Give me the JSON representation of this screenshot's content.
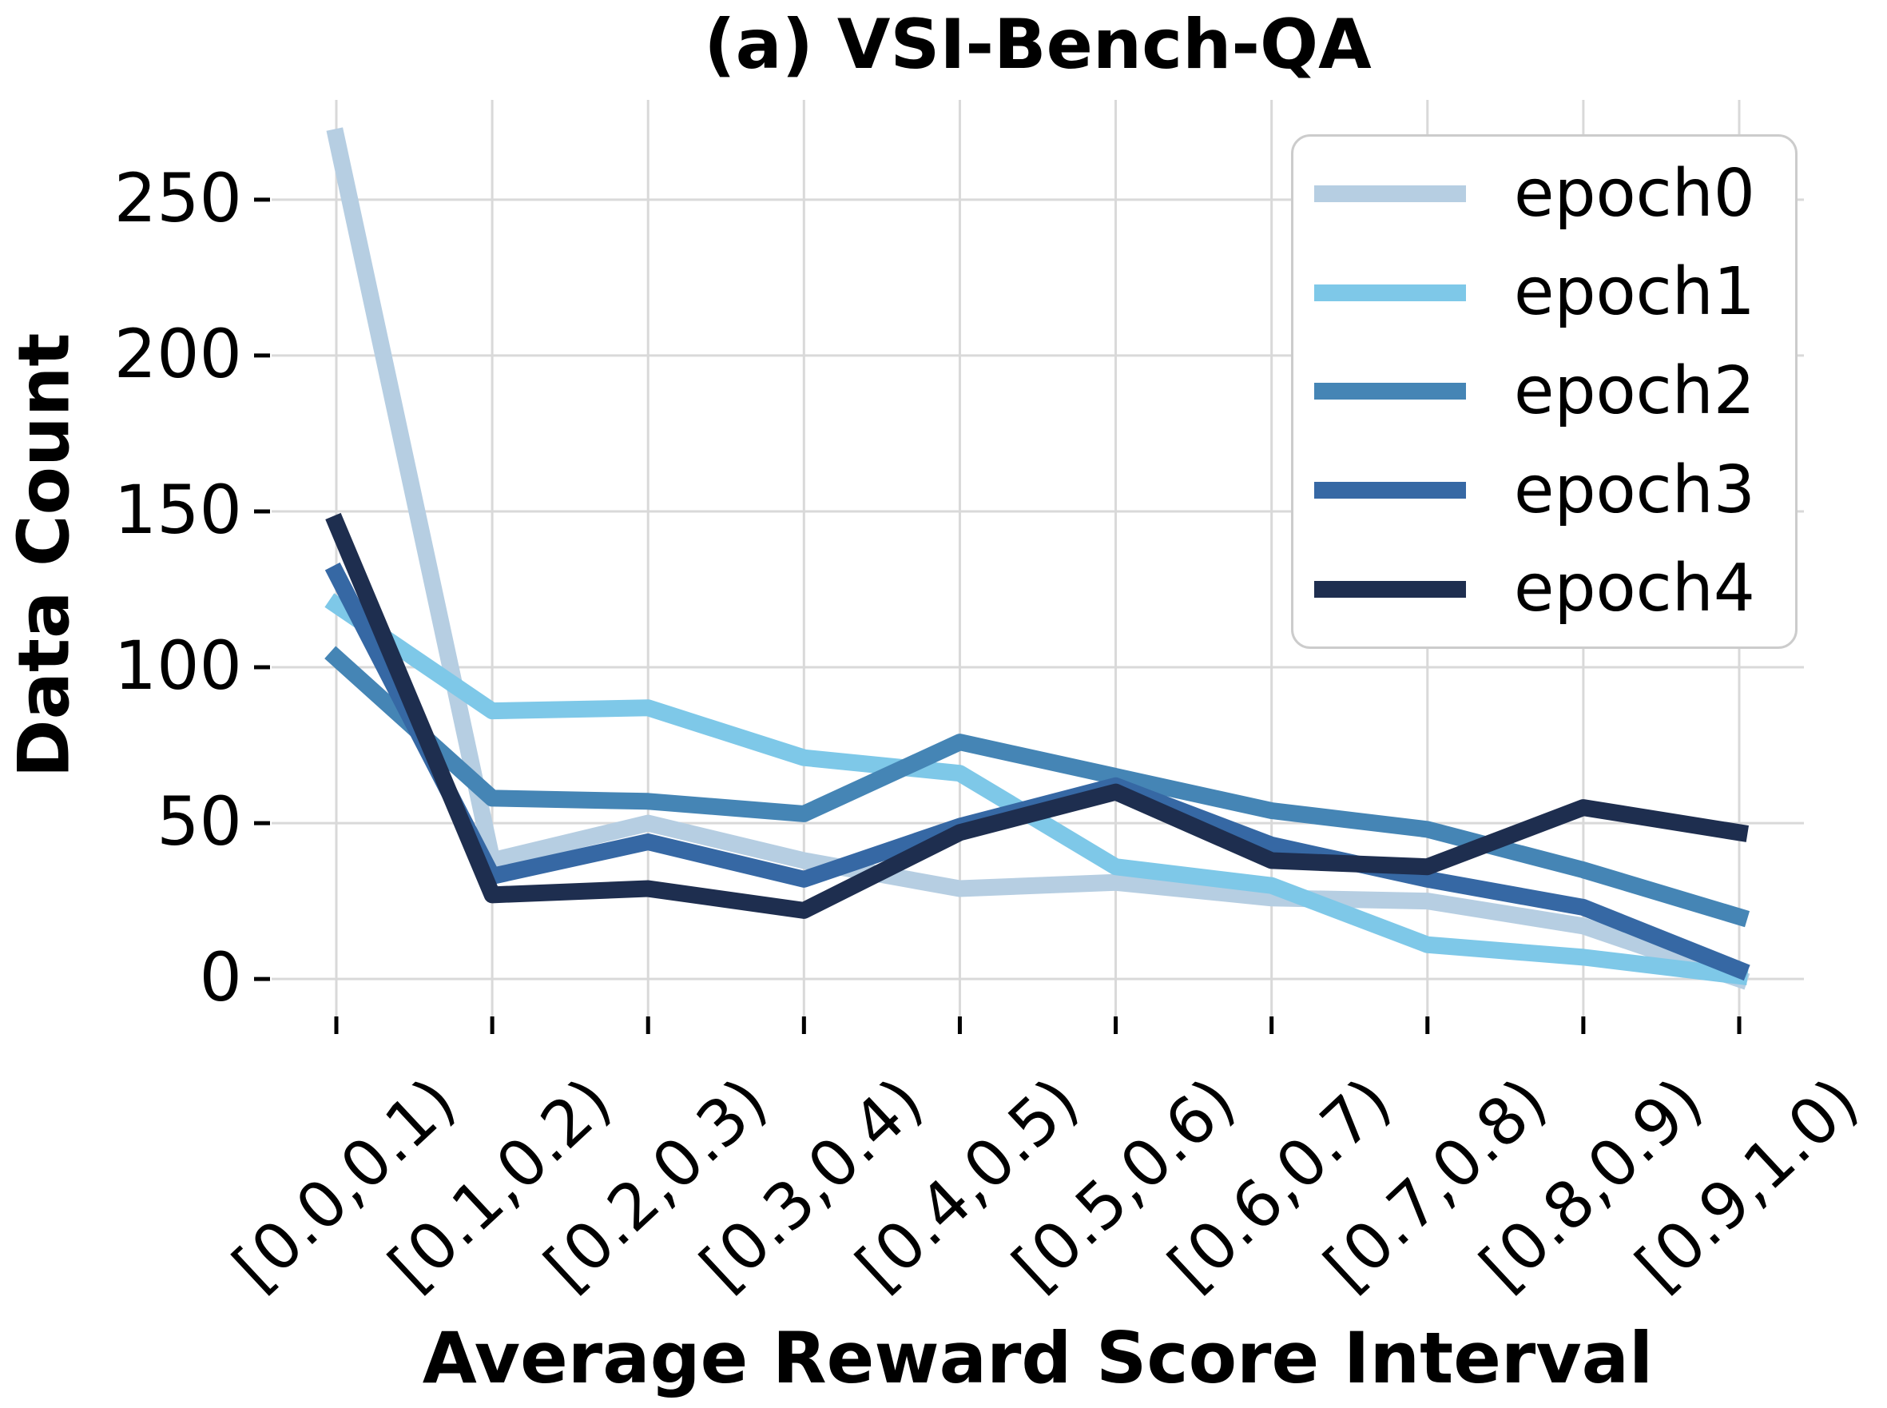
{
  "figure": {
    "background": "#ffffff"
  },
  "chart_data": {
    "type": "line",
    "title": "(a) VSI-Bench-QA",
    "xlabel": "Average Reward Score Interval",
    "ylabel": "Data Count",
    "categories": [
      "[0.0,0.1)",
      "[0.1,0.2)",
      "[0.2,0.3)",
      "[0.3,0.4)",
      "[0.4,0.5)",
      "[0.5,0.6)",
      "[0.6,0.7)",
      "[0.7,0.8)",
      "[0.8,0.9)",
      "[0.9,1.0)"
    ],
    "series": [
      {
        "name": "epoch0",
        "color": "#b6cee2",
        "values": [
          270,
          38,
          50,
          38,
          29,
          31,
          26,
          25,
          17,
          0
        ]
      },
      {
        "name": "epoch1",
        "color": "#7ec8e8",
        "values": [
          120,
          86,
          87,
          71,
          66,
          36,
          30,
          11,
          7,
          1
        ]
      },
      {
        "name": "epoch2",
        "color": "#4585b5",
        "values": [
          103,
          58,
          57,
          53,
          76,
          65,
          54,
          48,
          35,
          20
        ]
      },
      {
        "name": "epoch3",
        "color": "#3668a4",
        "values": [
          130,
          33,
          44,
          32,
          49,
          62,
          43,
          32,
          23,
          3
        ]
      },
      {
        "name": "epoch4",
        "color": "#1e2e4f",
        "values": [
          146,
          27,
          29,
          22,
          47,
          60,
          38,
          36,
          55,
          47
        ]
      }
    ],
    "yticks": [
      0,
      50,
      100,
      150,
      200,
      250
    ],
    "ylim": [
      -12,
      282
    ],
    "grid": true,
    "gridline_color": "#d9d9d9",
    "tick_color": "#000000",
    "legend_position": "upper right",
    "legend_border_color": "#cccccc",
    "x_tick_rotation_deg": 43
  }
}
